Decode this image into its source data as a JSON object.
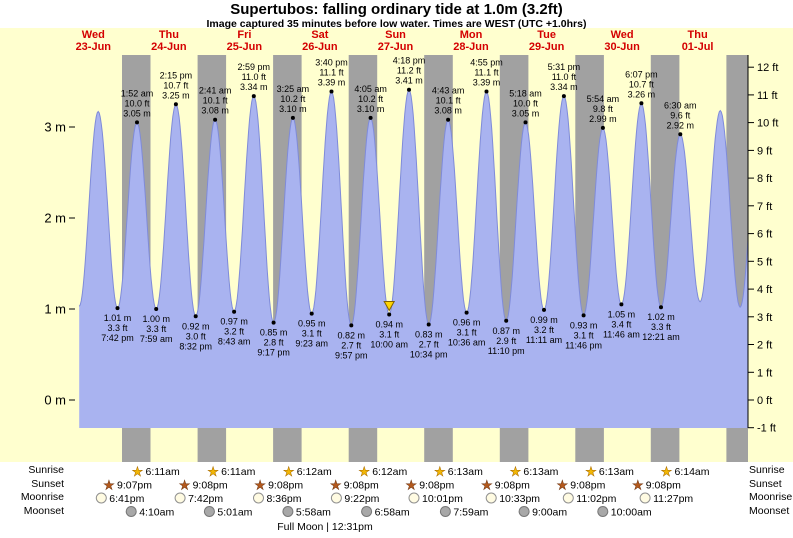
{
  "title": "Supertubos: falling  ordinary tide at 1.0m (3.2ft)",
  "subtitle": "Image captured 35 minutes before low water. Times are WEST (UTC +1.0hrs)",
  "full_moon": "Full Moon | 12:31pm",
  "colors": {
    "background": "#ffffcf",
    "night_band": "#a1a1a1",
    "tide_fill": "#a9b3f0",
    "tide_stroke": "#7f8bd9",
    "day_label": "#d40000",
    "marker_fill": "#ffd400",
    "marker_stroke": "#806000",
    "text": "#000000"
  },
  "days": [
    {
      "name": "Wed",
      "date": "23-Jun"
    },
    {
      "name": "Thu",
      "date": "24-Jun"
    },
    {
      "name": "Fri",
      "date": "25-Jun"
    },
    {
      "name": "Sat",
      "date": "26-Jun"
    },
    {
      "name": "Sun",
      "date": "27-Jun"
    },
    {
      "name": "Mon",
      "date": "28-Jun"
    },
    {
      "name": "Tue",
      "date": "29-Jun"
    },
    {
      "name": "Wed",
      "date": "30-Jun"
    },
    {
      "name": "Thu",
      "date": "01-Jul"
    }
  ],
  "axis": {
    "meters": [
      {
        "value": 3,
        "label": "3 m"
      },
      {
        "value": 2,
        "label": "2 m"
      },
      {
        "value": 1,
        "label": "1 m"
      },
      {
        "value": 0,
        "label": "0 m"
      }
    ],
    "feet": [
      {
        "value": 12,
        "label": "12 ft"
      },
      {
        "value": 11,
        "label": "11 ft"
      },
      {
        "value": 10,
        "label": "10 ft"
      },
      {
        "value": 9,
        "label": "9 ft"
      },
      {
        "value": 8,
        "label": "8 ft"
      },
      {
        "value": 7,
        "label": "7 ft"
      },
      {
        "value": 6,
        "label": "6 ft"
      },
      {
        "value": 5,
        "label": "5 ft"
      },
      {
        "value": 4,
        "label": "4 ft"
      },
      {
        "value": 3,
        "label": "3 ft"
      },
      {
        "value": 2,
        "label": "2 ft"
      },
      {
        "value": 1,
        "label": "1 ft"
      },
      {
        "value": 0,
        "label": "0 ft"
      },
      {
        "value": -1,
        "label": "-1 ft"
      }
    ]
  },
  "chart_data": {
    "type": "area",
    "title": "Supertubos tide heights, 23-Jun to 01-Jul",
    "ylabel_left": "meters",
    "ylabel_right": "feet",
    "time_unit": "hours from Wed 23-Jun 00:00 WEST",
    "tides": [
      {
        "type": "low",
        "t": 7.52,
        "m": 1.03,
        "labeled": false,
        "lines": []
      },
      {
        "type": "high",
        "t": 13.55,
        "m": 3.17,
        "labeled": false,
        "lines": []
      },
      {
        "type": "low",
        "t": 19.7,
        "m": 1.01,
        "labeled": true,
        "lines": [
          "1.01 m",
          "3.3 ft",
          "7:42 pm"
        ]
      },
      {
        "type": "high",
        "t": 25.867,
        "m": 3.05,
        "labeled": true,
        "lines": [
          "1:52 am",
          "10.0 ft",
          "3.05 m"
        ]
      },
      {
        "type": "low",
        "t": 31.983,
        "m": 1.0,
        "labeled": true,
        "lines": [
          "1.00 m",
          "3.3 ft",
          "7:59 am"
        ]
      },
      {
        "type": "high",
        "t": 38.25,
        "m": 3.25,
        "labeled": true,
        "lines": [
          "2:15 pm",
          "10.7 ft",
          "3.25 m"
        ]
      },
      {
        "type": "low",
        "t": 44.533,
        "m": 0.92,
        "labeled": true,
        "lines": [
          "0.92 m",
          "3.0 ft",
          "8:32 pm"
        ]
      },
      {
        "type": "high",
        "t": 50.683,
        "m": 3.08,
        "labeled": true,
        "lines": [
          "2:41 am",
          "10.1 ft",
          "3.08 m"
        ]
      },
      {
        "type": "low",
        "t": 56.717,
        "m": 0.97,
        "labeled": true,
        "lines": [
          "0.97 m",
          "3.2 ft",
          "8:43 am"
        ]
      },
      {
        "type": "high",
        "t": 62.983,
        "m": 3.34,
        "labeled": true,
        "lines": [
          "2:59 pm",
          "11.0 ft",
          "3.34 m"
        ]
      },
      {
        "type": "low",
        "t": 69.283,
        "m": 0.85,
        "labeled": true,
        "lines": [
          "0.85 m",
          "2.8 ft",
          "9:17 pm"
        ]
      },
      {
        "type": "high",
        "t": 75.417,
        "m": 3.1,
        "labeled": true,
        "lines": [
          "3:25 am",
          "10.2 ft",
          "3.10 m"
        ]
      },
      {
        "type": "low",
        "t": 81.383,
        "m": 0.95,
        "labeled": true,
        "lines": [
          "0.95 m",
          "3.1 ft",
          "9:23 am"
        ]
      },
      {
        "type": "high",
        "t": 87.667,
        "m": 3.39,
        "labeled": true,
        "lines": [
          "3:40 pm",
          "11.1 ft",
          "3.39 m"
        ]
      },
      {
        "type": "low",
        "t": 93.95,
        "m": 0.82,
        "labeled": true,
        "lines": [
          "0.82 m",
          "2.7 ft",
          "9:57 pm"
        ]
      },
      {
        "type": "high",
        "t": 100.083,
        "m": 3.1,
        "labeled": true,
        "lines": [
          "4:05 am",
          "10.2 ft",
          "3.10 m"
        ]
      },
      {
        "type": "low",
        "t": 106.0,
        "m": 0.94,
        "labeled": true,
        "current": true,
        "lines": [
          "0.94 m",
          "3.1 ft",
          "10:00 am"
        ]
      },
      {
        "type": "high",
        "t": 112.3,
        "m": 3.41,
        "labeled": true,
        "lines": [
          "4:18 pm",
          "11.2 ft",
          "3.41 m"
        ]
      },
      {
        "type": "low",
        "t": 118.567,
        "m": 0.83,
        "labeled": true,
        "lines": [
          "0.83 m",
          "2.7 ft",
          "10:34 pm"
        ]
      },
      {
        "type": "high",
        "t": 124.717,
        "m": 3.08,
        "labeled": true,
        "lines": [
          "4:43 am",
          "10.1 ft",
          "3.08 m"
        ]
      },
      {
        "type": "low",
        "t": 130.6,
        "m": 0.96,
        "labeled": true,
        "lines": [
          "0.96 m",
          "3.1 ft",
          "10:36 am"
        ]
      },
      {
        "type": "high",
        "t": 136.917,
        "m": 3.39,
        "labeled": true,
        "lines": [
          "4:55 pm",
          "11.1 ft",
          "3.39 m"
        ]
      },
      {
        "type": "low",
        "t": 143.167,
        "m": 0.87,
        "labeled": true,
        "lines": [
          "0.87 m",
          "2.9 ft",
          "11:10 pm"
        ]
      },
      {
        "type": "high",
        "t": 149.3,
        "m": 3.05,
        "labeled": true,
        "lines": [
          "5:18 am",
          "10.0 ft",
          "3.05 m"
        ]
      },
      {
        "type": "low",
        "t": 155.183,
        "m": 0.99,
        "labeled": true,
        "lines": [
          "0.99 m",
          "3.2 ft",
          "11:11 am"
        ]
      },
      {
        "type": "high",
        "t": 161.517,
        "m": 3.34,
        "labeled": true,
        "lines": [
          "5:31 pm",
          "11.0 ft",
          "3.34 m"
        ]
      },
      {
        "type": "low",
        "t": 167.767,
        "m": 0.93,
        "labeled": true,
        "lines": [
          "0.93 m",
          "3.1 ft",
          "11:46 pm"
        ]
      },
      {
        "type": "high",
        "t": 173.9,
        "m": 2.99,
        "labeled": true,
        "lines": [
          "5:54 am",
          "9.8 ft",
          "2.99 m"
        ]
      },
      {
        "type": "low",
        "t": 179.767,
        "m": 1.05,
        "labeled": true,
        "lines": [
          "1.05 m",
          "3.4 ft",
          "11:46 am"
        ]
      },
      {
        "type": "high",
        "t": 186.117,
        "m": 3.26,
        "labeled": true,
        "lines": [
          "6:07 pm",
          "10.7 ft",
          "3.26 m"
        ]
      },
      {
        "type": "low",
        "t": 192.35,
        "m": 1.02,
        "labeled": true,
        "lines": [
          "1.02 m",
          "3.3 ft",
          "12:21 am"
        ]
      },
      {
        "type": "high",
        "t": 198.5,
        "m": 2.92,
        "labeled": true,
        "lines": [
          "6:30 am",
          "9.6 ft",
          "2.92 m"
        ]
      },
      {
        "type": "low",
        "t": 204.78,
        "m": 1.08,
        "labeled": false,
        "lines": []
      },
      {
        "type": "high",
        "t": 211.2,
        "m": 3.18,
        "labeled": false,
        "lines": []
      },
      {
        "type": "low",
        "t": 217.5,
        "m": 1.02,
        "labeled": false,
        "lines": []
      },
      {
        "type": "high",
        "t": 223.8,
        "m": 3.2,
        "labeled": false,
        "lines": []
      }
    ],
    "night_bands": [
      [
        21.117,
        30.183
      ],
      [
        45.133,
        54.183
      ],
      [
        69.133,
        78.2
      ],
      [
        93.133,
        102.2
      ],
      [
        117.133,
        126.217
      ],
      [
        141.133,
        150.217
      ],
      [
        165.133,
        174.217
      ],
      [
        189.133,
        198.233
      ],
      [
        213.133,
        220.0
      ]
    ]
  },
  "sun_moon": {
    "rows": [
      {
        "key": "sunrise",
        "label": "Sunrise",
        "icon": "star",
        "fill": "#f2b705",
        "stroke": "#a86a00",
        "events": [
          {
            "time": "6:11am",
            "t": 30.183
          },
          {
            "time": "6:11am",
            "t": 54.183
          },
          {
            "time": "6:12am",
            "t": 78.2
          },
          {
            "time": "6:12am",
            "t": 102.2
          },
          {
            "time": "6:13am",
            "t": 126.217
          },
          {
            "time": "6:13am",
            "t": 150.217
          },
          {
            "time": "6:13am",
            "t": 174.217
          },
          {
            "time": "6:14am",
            "t": 198.233
          }
        ]
      },
      {
        "key": "sunset",
        "label": "Sunset",
        "icon": "star",
        "fill": "#b3591d",
        "stroke": "#6e3410",
        "events": [
          {
            "time": "9:07pm",
            "t": 21.117
          },
          {
            "time": "9:08pm",
            "t": 45.133
          },
          {
            "time": "9:08pm",
            "t": 69.133
          },
          {
            "time": "9:08pm",
            "t": 93.133
          },
          {
            "time": "9:08pm",
            "t": 117.133
          },
          {
            "time": "9:08pm",
            "t": 141.133
          },
          {
            "time": "9:08pm",
            "t": 165.133
          },
          {
            "time": "9:08pm",
            "t": 189.133
          }
        ]
      },
      {
        "key": "moonrise",
        "label": "Moonrise",
        "icon": "moon",
        "fill": "#fffbe2",
        "stroke": "#909090",
        "events": [
          {
            "time": "6:41pm",
            "t": 18.683
          },
          {
            "time": "7:42pm",
            "t": 43.7
          },
          {
            "time": "8:36pm",
            "t": 68.6
          },
          {
            "time": "9:22pm",
            "t": 93.367
          },
          {
            "time": "10:01pm",
            "t": 118.017
          },
          {
            "time": "10:33pm",
            "t": 142.55
          },
          {
            "time": "11:02pm",
            "t": 167.033
          },
          {
            "time": "11:27pm",
            "t": 191.45
          }
        ]
      },
      {
        "key": "moonset",
        "label": "Moonset",
        "icon": "moon",
        "fill": "#a8a8a8",
        "stroke": "#777777",
        "events": [
          {
            "time": "4:10am",
            "t": 28.167
          },
          {
            "time": "5:01am",
            "t": 53.017
          },
          {
            "time": "5:58am",
            "t": 77.967
          },
          {
            "time": "6:58am",
            "t": 102.967
          },
          {
            "time": "7:59am",
            "t": 127.983
          },
          {
            "time": "9:00am",
            "t": 153.0
          },
          {
            "time": "10:00am",
            "t": 178.0
          }
        ]
      }
    ]
  }
}
